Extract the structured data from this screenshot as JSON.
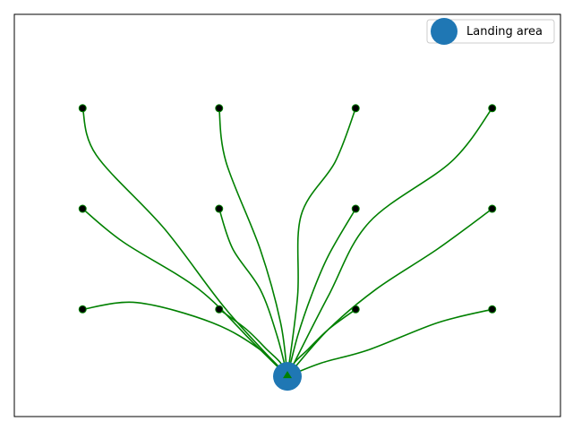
{
  "chart_data": {
    "type": "scatter",
    "title": "",
    "xlabel": "",
    "ylabel": "",
    "xlim": [
      0,
      8
    ],
    "ylim": [
      0,
      6
    ],
    "axis_ticks": false,
    "grid": false,
    "legend_position": "top-right",
    "colors": {
      "landing": "#1f77b4",
      "path": "#008000",
      "start": "#000000"
    },
    "landing_area": {
      "label": "Landing area",
      "x": 4.0,
      "y": 0.6
    },
    "start_points": [
      {
        "x": 1,
        "y": 4.6
      },
      {
        "x": 3,
        "y": 4.6
      },
      {
        "x": 5,
        "y": 4.6
      },
      {
        "x": 7,
        "y": 4.6
      },
      {
        "x": 1,
        "y": 3.1
      },
      {
        "x": 3,
        "y": 3.1
      },
      {
        "x": 5,
        "y": 3.1
      },
      {
        "x": 7,
        "y": 3.1
      },
      {
        "x": 1,
        "y": 1.6
      },
      {
        "x": 3,
        "y": 1.6
      },
      {
        "x": 5,
        "y": 1.6
      },
      {
        "x": 7,
        "y": 1.6
      }
    ],
    "trajectories": [
      [
        [
          1.0,
          4.6
        ],
        [
          1.2,
          3.9
        ],
        [
          2.2,
          2.8
        ],
        [
          3.1,
          1.6
        ],
        [
          4.0,
          0.6
        ]
      ],
      [
        [
          3.0,
          4.6
        ],
        [
          3.1,
          3.8
        ],
        [
          3.6,
          2.5
        ],
        [
          3.9,
          1.4
        ],
        [
          4.0,
          0.6
        ]
      ],
      [
        [
          5.0,
          4.6
        ],
        [
          4.7,
          3.8
        ],
        [
          4.2,
          3.0
        ],
        [
          4.15,
          1.8
        ],
        [
          4.0,
          0.6
        ]
      ],
      [
        [
          7.0,
          4.6
        ],
        [
          6.4,
          3.8
        ],
        [
          5.2,
          2.9
        ],
        [
          4.6,
          1.8
        ],
        [
          4.0,
          0.6
        ]
      ],
      [
        [
          1.0,
          3.1
        ],
        [
          1.6,
          2.6
        ],
        [
          2.7,
          1.9
        ],
        [
          3.5,
          1.1
        ],
        [
          4.0,
          0.6
        ]
      ],
      [
        [
          3.0,
          3.1
        ],
        [
          3.2,
          2.5
        ],
        [
          3.6,
          1.9
        ],
        [
          3.85,
          1.2
        ],
        [
          4.0,
          0.6
        ]
      ],
      [
        [
          5.0,
          3.1
        ],
        [
          4.6,
          2.4
        ],
        [
          4.35,
          1.8
        ],
        [
          4.15,
          1.2
        ],
        [
          4.0,
          0.6
        ]
      ],
      [
        [
          7.0,
          3.1
        ],
        [
          6.2,
          2.5
        ],
        [
          5.3,
          1.9
        ],
        [
          4.6,
          1.3
        ],
        [
          4.0,
          0.6
        ]
      ],
      [
        [
          1.0,
          1.6
        ],
        [
          1.8,
          1.7
        ],
        [
          2.9,
          1.4
        ],
        [
          3.6,
          1.0
        ],
        [
          4.0,
          0.6
        ]
      ],
      [
        [
          3.0,
          1.6
        ],
        [
          3.4,
          1.3
        ],
        [
          3.7,
          1.0
        ],
        [
          3.9,
          0.8
        ],
        [
          4.0,
          0.6
        ]
      ],
      [
        [
          5.0,
          1.6
        ],
        [
          4.6,
          1.3
        ],
        [
          4.3,
          1.0
        ],
        [
          4.1,
          0.8
        ],
        [
          4.0,
          0.6
        ]
      ],
      [
        [
          7.0,
          1.6
        ],
        [
          6.2,
          1.4
        ],
        [
          5.2,
          1.0
        ],
        [
          4.5,
          0.8
        ],
        [
          4.0,
          0.6
        ]
      ]
    ]
  }
}
